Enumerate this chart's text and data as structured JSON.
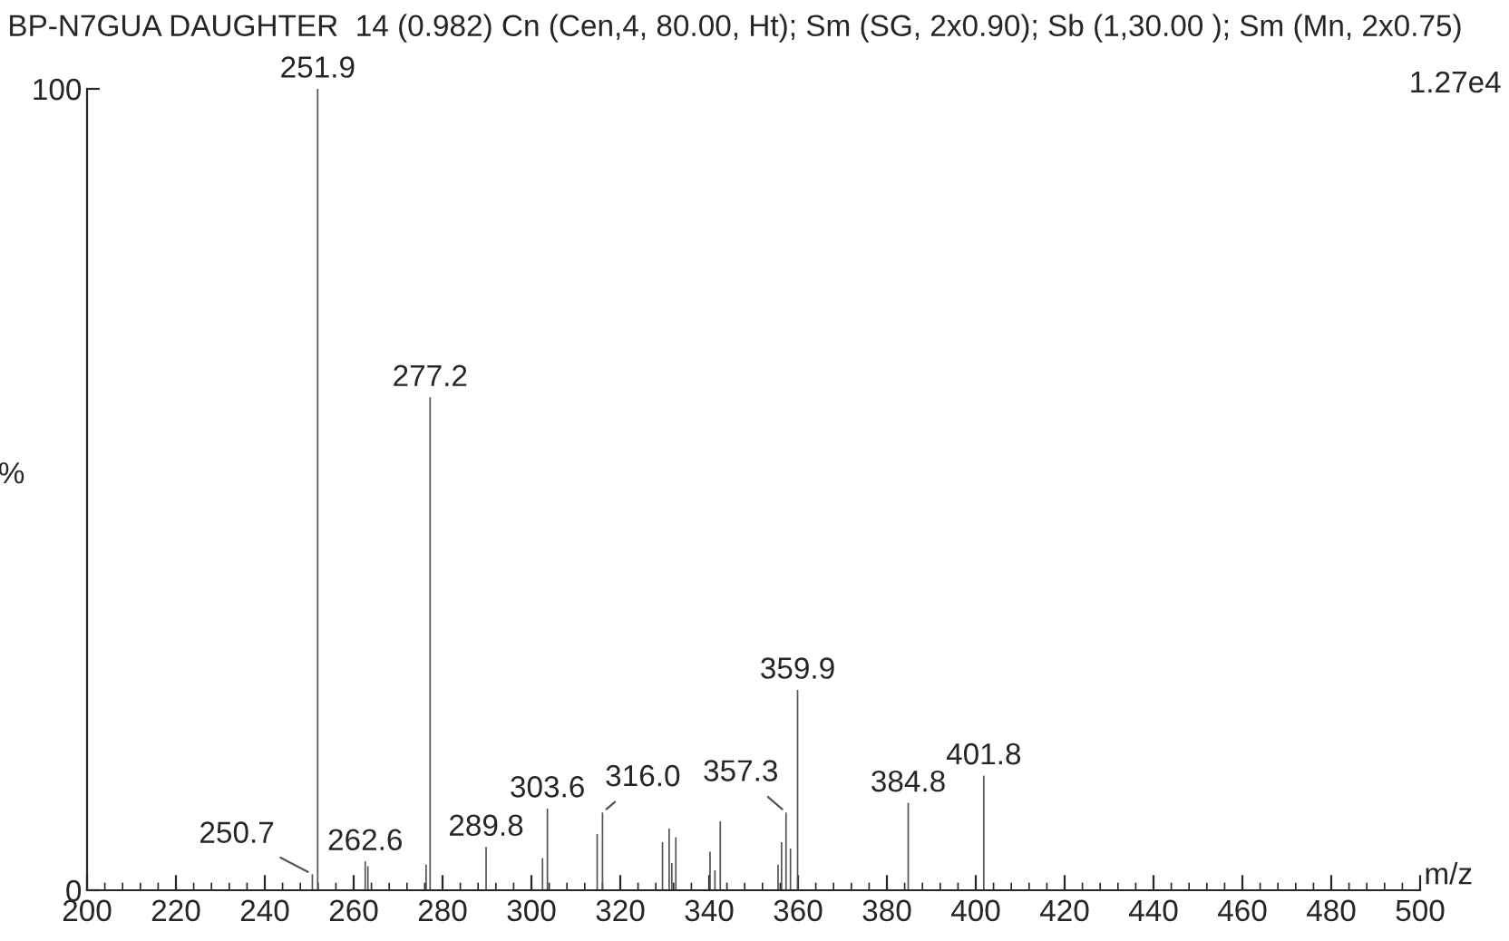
{
  "chart_data": {
    "type": "bar",
    "title": "BP-N7GUA DAUGHTER  14 (0.982) Cn (Cen,4, 80.00, Ht); Sm (SG, 2x0.90); Sb (1,30.00 ); Sm (Mn, 2x0.75)",
    "xlabel": "m/z",
    "ylabel": "%",
    "x": [
      250.7,
      251.9,
      262.6,
      263.2,
      276.3,
      277.2,
      289.8,
      302.5,
      303.6,
      314.8,
      316.0,
      329.5,
      331.0,
      331.6,
      332.5,
      340.2,
      341.3,
      342.5,
      355.5,
      356.3,
      357.3,
      358.3,
      359.9,
      384.8,
      401.8
    ],
    "series": [
      {
        "color": "#555555",
        "values": [
          2,
          100,
          3.6,
          3,
          3.2,
          61.5,
          5.4,
          4,
          10.2,
          7,
          9.7,
          6,
          7.7,
          3.4,
          6.6,
          4.8,
          2.5,
          8.6,
          3.2,
          6,
          9.7,
          5.2,
          25,
          10.9,
          14.3
        ]
      }
    ],
    "annotations": [
      {
        "text": "250.7",
        "x": 250.7,
        "y": 2
      },
      {
        "text": "251.9",
        "x": 251.9,
        "y": 100
      },
      {
        "text": "262.6",
        "x": 262.6,
        "y": 3.6
      },
      {
        "text": "277.2",
        "x": 277.2,
        "y": 61.5
      },
      {
        "text": "289.8",
        "x": 289.8,
        "y": 5.4
      },
      {
        "text": "303.6",
        "x": 303.6,
        "y": 10.2
      },
      {
        "text": "316.0",
        "x": 316.0,
        "y": 9.7
      },
      {
        "text": "357.3",
        "x": 357.3,
        "y": 9.7
      },
      {
        "text": "359.9",
        "x": 359.9,
        "y": 25
      },
      {
        "text": "384.8",
        "x": 384.8,
        "y": 10.9
      },
      {
        "text": "401.8",
        "x": 401.8,
        "y": 14.3
      },
      "1.27e4"
    ],
    "xlim": [
      200,
      500
    ],
    "xticks": [
      200,
      220,
      240,
      260,
      280,
      300,
      320,
      340,
      360,
      380,
      400,
      420,
      440,
      460,
      480,
      500
    ],
    "ylim": [
      0,
      100
    ],
    "yticks": [
      0,
      100
    ],
    "grid": false,
    "legend": false
  }
}
